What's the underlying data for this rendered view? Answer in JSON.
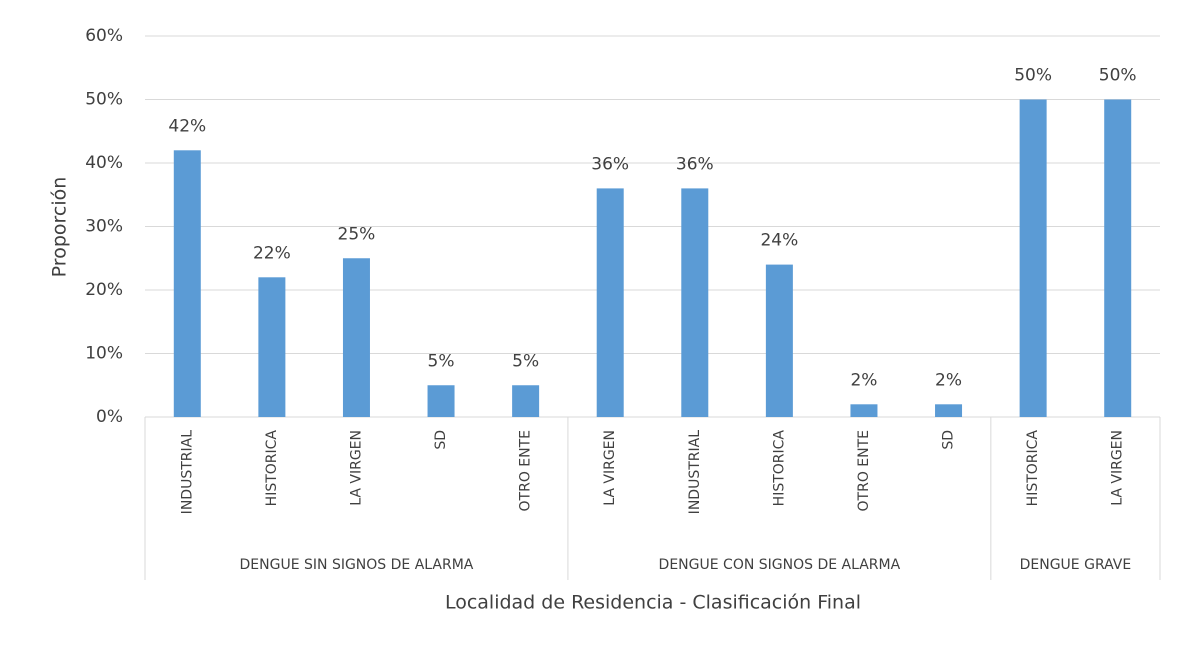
{
  "chart_data": {
    "type": "bar",
    "y_label": "Proporción",
    "x_label": "Localidad de Residencia - Clasificación Final",
    "color": "#5b9bd5",
    "grid": true,
    "ylim": [
      0,
      60
    ],
    "yticks": [
      {
        "value": 0,
        "label": "0%"
      },
      {
        "value": 10,
        "label": "10%"
      },
      {
        "value": 20,
        "label": "20%"
      },
      {
        "value": 30,
        "label": "30%"
      },
      {
        "value": 40,
        "label": "40%"
      },
      {
        "value": 50,
        "label": "50%"
      },
      {
        "value": 60,
        "label": "60%"
      }
    ],
    "groups": [
      {
        "name": "DENGUE SIN SIGNOS DE ALARMA",
        "categories": [
          "INDUSTRIAL",
          "HISTORICA",
          "LA VIRGEN",
          "SD",
          "OTRO ENTE"
        ],
        "values": [
          42,
          22,
          25,
          5,
          5
        ],
        "value_labels": [
          "42%",
          "22%",
          "25%",
          "5%",
          "5%"
        ]
      },
      {
        "name": "DENGUE CON SIGNOS DE ALARMA",
        "categories": [
          "LA VIRGEN",
          "INDUSTRIAL",
          "HISTORICA",
          "OTRO ENTE",
          "SD"
        ],
        "values": [
          36,
          36,
          24,
          2,
          2
        ],
        "value_labels": [
          "36%",
          "36%",
          "24%",
          "2%",
          "2%"
        ]
      },
      {
        "name": "DENGUE GRAVE",
        "categories": [
          "HISTORICA",
          "LA VIRGEN"
        ],
        "values": [
          50,
          50
        ],
        "value_labels": [
          "50%",
          "50%"
        ]
      }
    ]
  }
}
